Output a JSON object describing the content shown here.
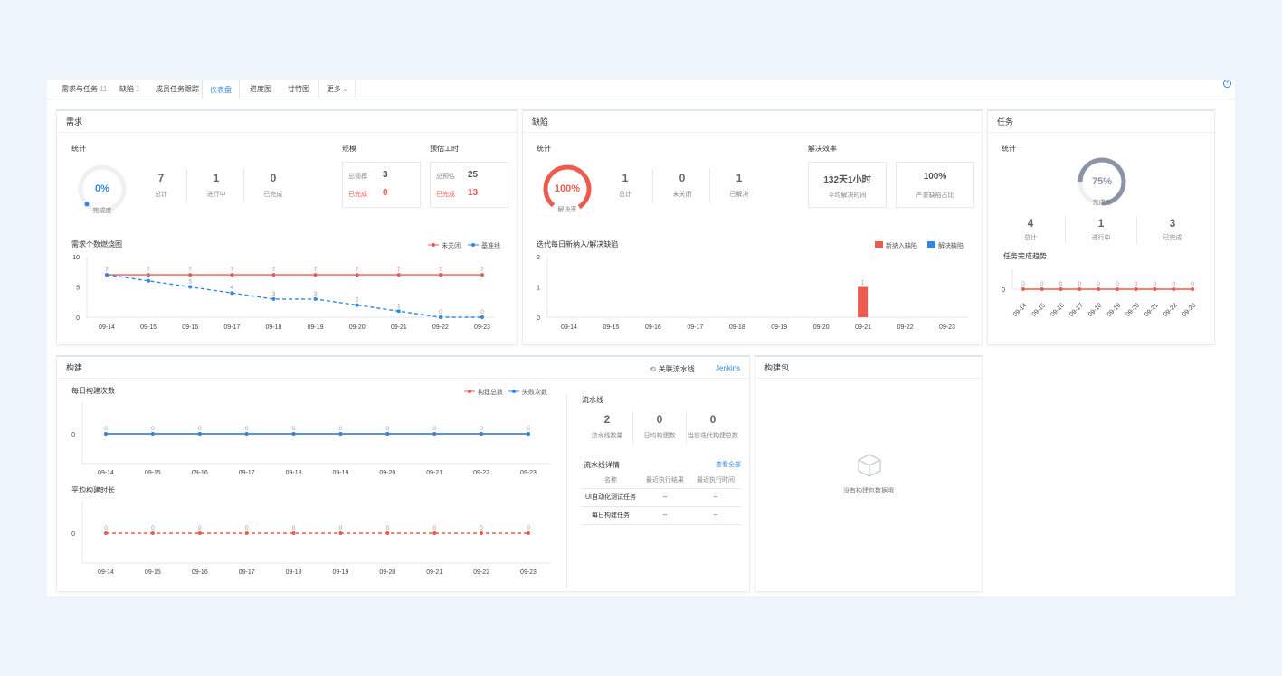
{
  "tabs": [
    {
      "label": "需求与任务",
      "count": "11"
    },
    {
      "label": "缺陷",
      "count": "1"
    },
    {
      "label": "成员任务跟踪",
      "count": ""
    },
    {
      "label": "仪表盘",
      "count": ""
    },
    {
      "label": "进度图",
      "count": ""
    },
    {
      "label": "甘特图",
      "count": ""
    },
    {
      "label": "更多",
      "count": ""
    }
  ],
  "req": {
    "title": "需求",
    "stats_label": "统计",
    "ring_value": "0%",
    "ring_label": "完成度",
    "total": "7",
    "total_label": "总计",
    "doing": "1",
    "doing_label": "进行中",
    "done": "0",
    "done_label": "已完成",
    "scale_title": "规模",
    "scale_total_label": "总规模",
    "scale_total": "3",
    "scale_done_label": "已完成",
    "scale_done": "0",
    "est_title": "预估工时",
    "est_total_label": "总预估",
    "est_total": "25",
    "est_done_label": "已完成",
    "est_done": "13",
    "chart_title": "需求个数燃烧图",
    "legend_open": "未关闭",
    "legend_base": "基准线"
  },
  "bug": {
    "title": "缺陷",
    "stats_label": "统计",
    "ring_value": "100%",
    "ring_label": "解决率",
    "total": "1",
    "total_label": "总计",
    "open": "0",
    "open_label": "未关闭",
    "solved": "1",
    "solved_label": "已解决",
    "eff_title": "解决效率",
    "avg_time": "132天1小时",
    "avg_label": "平均解决时间",
    "severe": "100%",
    "severe_label": "严重缺陷占比",
    "chart_title": "迭代每日新纳入/解决缺陷",
    "legend_new": "新纳入缺陷",
    "legend_solved": "解决缺陷"
  },
  "task": {
    "title": "任务",
    "stats_label": "统计",
    "ring_value": "75%",
    "ring_label": "完成度",
    "total": "4",
    "total_label": "总计",
    "doing": "1",
    "doing_label": "进行中",
    "done": "3",
    "done_label": "已完成",
    "chart_title": "任务完成趋势"
  },
  "build": {
    "title": "构建",
    "link_pipeline": "关联流水线",
    "link_jenkins": "Jenkins",
    "daily_title": "每日构建次数",
    "legend_total": "构建总数",
    "legend_fail": "失败次数",
    "avg_title": "平均构建时长",
    "pipe_title": "流水线",
    "pipe_count": "2",
    "pipe_count_label": "流水线数量",
    "daily_avg": "0",
    "daily_avg_label": "日均构建数",
    "iter_total": "0",
    "iter_total_label": "当前迭代构建总数",
    "detail_title": "流水线详情",
    "view_all": "查看全部",
    "col_name": "名称",
    "col_result": "最近执行结果",
    "col_time": "最近执行时间",
    "rows": [
      {
        "name": "UI自动化测试任务",
        "result": "--",
        "time": "--"
      },
      {
        "name": "每日构建任务",
        "result": "--",
        "time": "--"
      }
    ]
  },
  "pkg": {
    "title": "构建包",
    "empty": "没有构建包数据哦"
  },
  "colors": {
    "accent": "#2f88e8",
    "red": "#ef5a4f",
    "gray_ring": "#8a94a6"
  },
  "chart_data": [
    {
      "type": "line",
      "title": "需求个数燃烧图",
      "x": [
        "09-14",
        "09-15",
        "09-16",
        "09-17",
        "09-18",
        "09-19",
        "09-20",
        "09-21",
        "09-22",
        "09-23"
      ],
      "ylim": [
        0,
        10
      ],
      "yticks": [
        0,
        5,
        10
      ],
      "series": [
        {
          "name": "未关闭",
          "values": [
            7,
            7,
            7,
            7,
            7,
            7,
            7,
            7,
            7,
            7
          ]
        },
        {
          "name": "基准线",
          "values": [
            7,
            6,
            5,
            4,
            3,
            3,
            2,
            1,
            0,
            0
          ]
        }
      ]
    },
    {
      "type": "bar",
      "title": "迭代每日新纳入/解决缺陷",
      "x": [
        "09-14",
        "09-15",
        "09-16",
        "09-17",
        "09-18",
        "09-19",
        "09-20",
        "09-21",
        "09-22",
        "09-23"
      ],
      "ylim": [
        0,
        2
      ],
      "yticks": [
        0,
        1,
        2
      ],
      "series": [
        {
          "name": "新纳入缺陷",
          "values": [
            0,
            0,
            0,
            0,
            0,
            0,
            0,
            1,
            0,
            0
          ]
        },
        {
          "name": "解决缺陷",
          "values": [
            0,
            0,
            0,
            0,
            0,
            0,
            0,
            0,
            0,
            0
          ]
        }
      ]
    },
    {
      "type": "line",
      "title": "任务完成趋势",
      "x": [
        "09-14",
        "09-15",
        "09-16",
        "09-17",
        "09-18",
        "09-19",
        "09-20",
        "09-21",
        "09-22",
        "09-23"
      ],
      "yticks": [
        0
      ],
      "series": [
        {
          "values": [
            0,
            0,
            0,
            0,
            0,
            0,
            0,
            0,
            0,
            0
          ]
        }
      ]
    },
    {
      "type": "line",
      "title": "每日构建次数",
      "x": [
        "09-14",
        "09-15",
        "09-16",
        "09-17",
        "09-18",
        "09-19",
        "09-20",
        "09-21",
        "09-22",
        "09-23"
      ],
      "yticks": [
        0
      ],
      "series": [
        {
          "name": "构建总数",
          "values": [
            0,
            0,
            0,
            0,
            0,
            0,
            0,
            0,
            0,
            0
          ]
        },
        {
          "name": "失败次数",
          "values": [
            0,
            0,
            0,
            0,
            0,
            0,
            0,
            0,
            0,
            0
          ]
        }
      ]
    },
    {
      "type": "line",
      "title": "平均构建时长",
      "x": [
        "09-14",
        "09-15",
        "09-16",
        "09-17",
        "09-18",
        "09-19",
        "09-20",
        "09-21",
        "09-22",
        "09-23"
      ],
      "yticks": [
        0
      ],
      "series": [
        {
          "values": [
            0,
            0,
            0,
            0,
            0,
            0,
            0,
            0,
            0,
            0
          ]
        }
      ]
    }
  ]
}
